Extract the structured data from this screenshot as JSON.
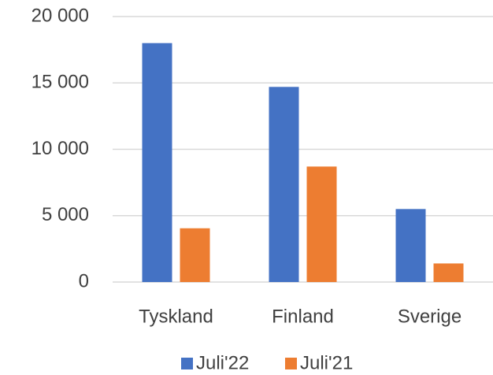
{
  "chart_data": {
    "type": "bar",
    "categories": [
      "Tyskland",
      "Finland",
      "Sverige"
    ],
    "series": [
      {
        "name": "Juli'22",
        "color": "#4472c4",
        "values": [
          18000,
          14700,
          5500
        ]
      },
      {
        "name": "Juli'21",
        "color": "#ed7d31",
        "values": [
          4050,
          8700,
          1400
        ]
      }
    ],
    "ylim": [
      0,
      20000
    ],
    "yticks": [
      {
        "value": 0,
        "label": "0"
      },
      {
        "value": 5000,
        "label": "5 000"
      },
      {
        "value": 10000,
        "label": "10 000"
      },
      {
        "value": 15000,
        "label": "15 000"
      },
      {
        "value": 20000,
        "label": "20 000"
      }
    ],
    "grid": true,
    "legend": "bottom"
  }
}
